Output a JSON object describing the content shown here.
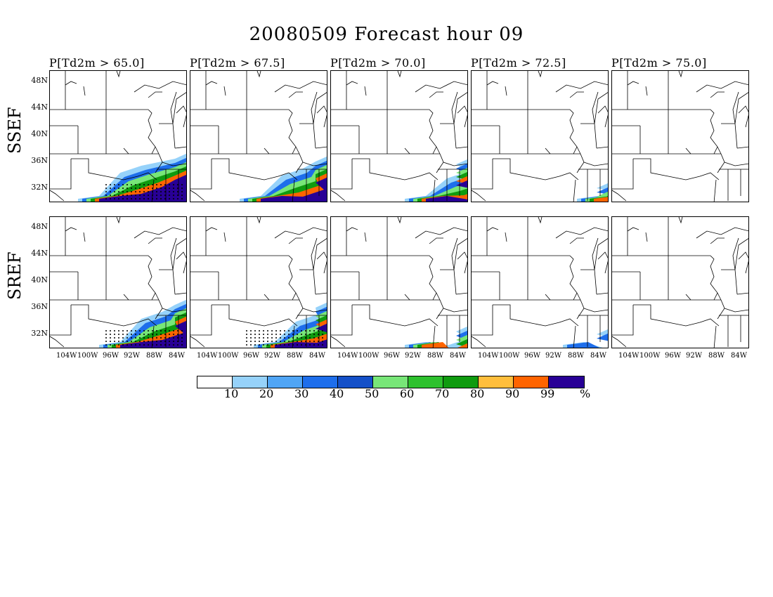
{
  "figure": {
    "title": "20080509 Forecast hour 09",
    "panel_titles": [
      "P[Td2m > 65.0]",
      "P[Td2m > 67.5]",
      "P[Td2m > 70.0]",
      "P[Td2m > 72.5]",
      "P[Td2m > 75.0]"
    ],
    "row_labels": [
      "SSEF",
      "SREF"
    ],
    "lat_labels": [
      "48N",
      "44N",
      "40N",
      "36N",
      "32N"
    ],
    "lon_labels": [
      "104W",
      "100W",
      "96W",
      "92W",
      "88W",
      "84W"
    ]
  },
  "colorbar": {
    "colors": [
      "#ffffff",
      "#96d2fa",
      "#50a5f5",
      "#1e6eeb",
      "#1450c8",
      "#78e678",
      "#2ec12e",
      "#0f9b0f",
      "#ffbe3c",
      "#ff6400",
      "#280096"
    ],
    "labels": [
      "10",
      "20",
      "30",
      "40",
      "50",
      "60",
      "70",
      "80",
      "90",
      "99",
      "%"
    ]
  },
  "maps": {
    "SSEF": [
      {
        "threshold": "65.0",
        "max_category": "99",
        "hatched": true
      },
      {
        "threshold": "67.5",
        "max_category": "99",
        "hatched": false
      },
      {
        "threshold": "70.0",
        "max_category": "99",
        "hatched": false
      },
      {
        "threshold": "72.5",
        "max_category": "90",
        "hatched": false
      },
      {
        "threshold": "75.0",
        "max_category": "none",
        "hatched": false
      }
    ],
    "SREF": [
      {
        "threshold": "65.0",
        "max_category": "99",
        "hatched": true
      },
      {
        "threshold": "67.5",
        "max_category": "99",
        "hatched": true
      },
      {
        "threshold": "70.0",
        "max_category": "90",
        "hatched": false
      },
      {
        "threshold": "72.5",
        "max_category": "30",
        "hatched": false
      },
      {
        "threshold": "75.0",
        "max_category": "none",
        "hatched": false
      }
    ]
  }
}
